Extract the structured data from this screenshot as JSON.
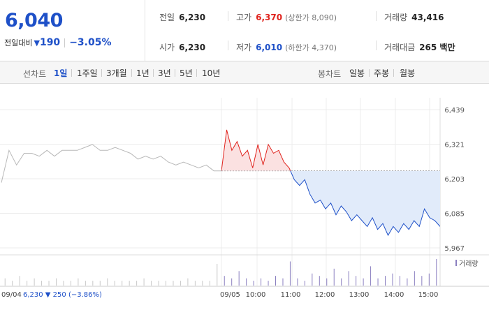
{
  "summary": {
    "price": "6,040",
    "diff_label": "전일대비",
    "diff_arrow": "▼",
    "diff_value": "190",
    "diff_pct": "−3.05%"
  },
  "stats": {
    "prev_label": "전일",
    "prev_value": "6,230",
    "open_label": "시가",
    "open_value": "6,230",
    "high_label": "고가",
    "high_value": "6,370",
    "high_limit": "(상한가 8,090)",
    "low_label": "저가",
    "low_value": "6,010",
    "low_limit": "(하한가 4,370)",
    "volume_label": "거래량",
    "volume_value": "43,416",
    "amount_label": "거래대금",
    "amount_value": "265 백만"
  },
  "tabs": {
    "line_label": "선차트",
    "line_items": [
      "1일",
      "1주일",
      "3개월",
      "1년",
      "3년",
      "5년",
      "10년"
    ],
    "line_active": "1일",
    "candle_label": "봉차트",
    "candle_items": [
      "일봉",
      "주봉",
      "월봉"
    ]
  },
  "colors": {
    "up": "#e0231d",
    "down": "#1e50c8",
    "up_fill": "#fbe1e1",
    "down_fill": "#e1ebfa"
  },
  "chart_data": {
    "type": "line",
    "title": "",
    "y_ticks": [
      "6,439",
      "6,321",
      "6,203",
      "6,085",
      "5,967"
    ],
    "ylim": [
      5967,
      6439
    ],
    "x_ticks": [
      "09/05",
      "10:00",
      "11:00",
      "12:00",
      "13:00",
      "14:00",
      "15:00"
    ],
    "prev_day_label": "09/04",
    "prev_day_close": "6,230",
    "prev_day_change": "▼ 250 (−3.86%)",
    "volume_label": "거래량",
    "reference_price": 6230,
    "series": [
      {
        "name": "09/04",
        "values": [
          6190,
          6300,
          6250,
          6290,
          6290,
          6280,
          6300,
          6280,
          6300,
          6300,
          6300,
          6310,
          6320,
          6300,
          6300,
          6310,
          6300,
          6290,
          6270,
          6280,
          6270,
          6280,
          6260,
          6250,
          6260,
          6250,
          6240,
          6250,
          6230,
          6230
        ]
      },
      {
        "name": "09/05",
        "values": [
          6230,
          6370,
          6300,
          6330,
          6280,
          6300,
          6240,
          6320,
          6250,
          6320,
          6290,
          6300,
          6260,
          6240,
          6200,
          6180,
          6200,
          6150,
          6120,
          6130,
          6100,
          6120,
          6080,
          6110,
          6090,
          6060,
          6080,
          6060,
          6040,
          6070,
          6030,
          6050,
          6010,
          6040,
          6020,
          6050,
          6030,
          6060,
          6040,
          6100,
          6070,
          6060,
          6040
        ]
      }
    ],
    "volume": [
      3,
      2,
      4,
      2,
      3,
      2,
      2,
      3,
      2,
      2,
      3,
      2,
      2,
      2,
      3,
      2,
      2,
      2,
      2,
      3,
      2,
      2,
      2,
      2,
      2,
      3,
      2,
      2,
      2,
      9,
      4,
      3,
      6,
      3,
      2,
      3,
      2,
      4,
      3,
      10,
      3,
      2,
      5,
      4,
      3,
      7,
      3,
      6,
      4,
      3,
      8,
      3,
      4,
      5,
      4,
      3,
      6,
      4,
      5,
      11
    ]
  }
}
